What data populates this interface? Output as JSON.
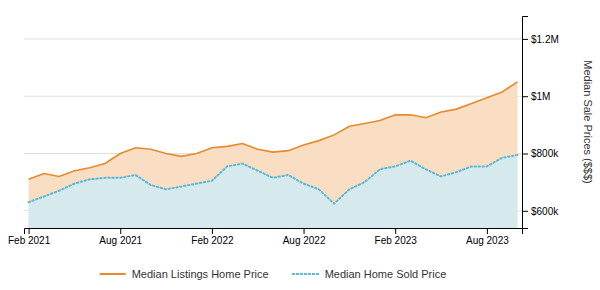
{
  "chart_data": {
    "type": "area",
    "ylabel": "Median Sale Prices ($$$)",
    "categories": [
      "Feb 2021",
      null,
      null,
      null,
      null,
      null,
      "Aug 2021",
      null,
      null,
      null,
      null,
      null,
      "Feb 2022",
      null,
      null,
      null,
      null,
      null,
      "Aug 2022",
      null,
      null,
      null,
      null,
      null,
      "Feb 2023",
      null,
      null,
      null,
      null,
      null,
      "Aug 2023",
      null,
      null
    ],
    "series": [
      {
        "name": "Median Listings Home Price",
        "color": "#E8892B",
        "line_style": "solid",
        "values": [
          710000,
          730000,
          720000,
          740000,
          750000,
          765000,
          800000,
          820000,
          815000,
          800000,
          790000,
          800000,
          820000,
          825000,
          835000,
          815000,
          805000,
          810000,
          830000,
          845000,
          865000,
          895000,
          905000,
          915000,
          935000,
          935000,
          925000,
          945000,
          955000,
          975000,
          995000,
          1015000,
          1050000
        ]
      },
      {
        "name": "Median Home Sold Price",
        "color": "#5BB8D4",
        "line_style": "dotted",
        "values": [
          630000,
          650000,
          670000,
          695000,
          710000,
          715000,
          715000,
          725000,
          690000,
          675000,
          685000,
          695000,
          705000,
          755000,
          765000,
          740000,
          715000,
          725000,
          695000,
          675000,
          625000,
          675000,
          700000,
          745000,
          755000,
          775000,
          745000,
          720000,
          735000,
          755000,
          755000,
          785000,
          795000
        ]
      }
    ],
    "ylim": [
      540000,
      1280000
    ],
    "yticks": [
      {
        "value": 600000,
        "label": "$600k"
      },
      {
        "value": 800000,
        "label": "$800k"
      },
      {
        "value": 1000000,
        "label": "$1M"
      },
      {
        "value": 1200000,
        "label": "$1.2M"
      }
    ],
    "grid": true,
    "legend": "bottom"
  }
}
